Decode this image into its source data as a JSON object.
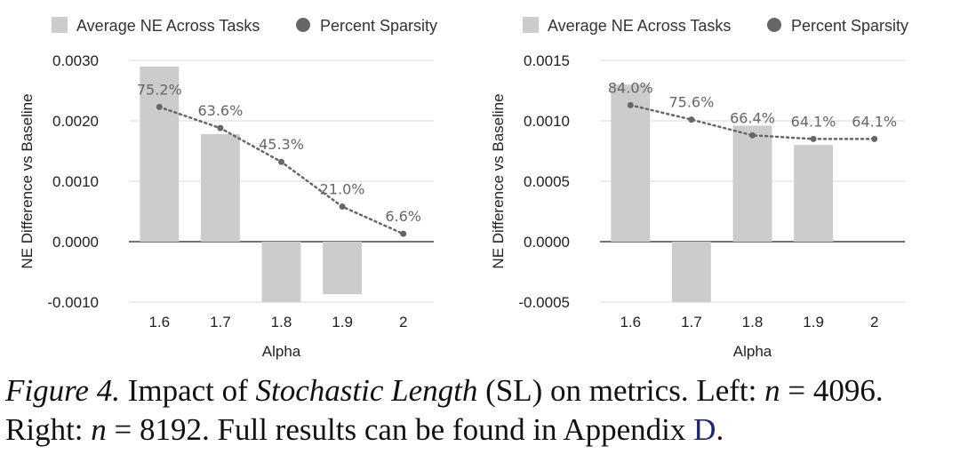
{
  "colors": {
    "bar": "#cccccc",
    "line": "#666666",
    "grid": "#d9d9d9",
    "zero": "#444444",
    "ref": "#1a237e"
  },
  "legend": {
    "bar_label": "Average NE Across Tasks",
    "line_label": "Percent Sparsity"
  },
  "caption": {
    "figure_label": "Figure 4.",
    "text_1": " Impact of ",
    "emph": "Stochastic Length",
    "text_2": " (SL) on metrics. Left: ",
    "var_1": "n",
    "eq_1": " = 4096. Right: ",
    "var_2": "n",
    "eq_2": " = 8192. Full results can be found in Appendix ",
    "appendix_ref": "D",
    "end": "."
  },
  "chart_data": [
    {
      "type": "bar",
      "xlabel": "Alpha",
      "ylabel": "NE Difference vs Baseline",
      "categories": [
        "1.6",
        "1.7",
        "1.8",
        "1.9",
        "2"
      ],
      "ylim": [
        -0.001,
        0.003
      ],
      "yticks": [
        "-0.0010",
        "0.0000",
        "0.0010",
        "0.0020",
        "0.0030"
      ],
      "bars": [
        0.0029,
        0.00178,
        -0.001,
        -0.00087,
        null
      ],
      "line_values": [
        0.00223,
        0.00188,
        0.00132,
        0.00058,
        0.00013
      ],
      "line_labels": [
        "75.2%",
        "63.6%",
        "45.3%",
        "21.0%",
        "6.6%"
      ],
      "grid": true,
      "legend_position": "top"
    },
    {
      "type": "bar",
      "xlabel": "Alpha",
      "ylabel": "NE Difference vs Baseline",
      "categories": [
        "1.6",
        "1.7",
        "1.8",
        "1.9",
        "2"
      ],
      "ylim": [
        -0.0005,
        0.0015
      ],
      "yticks": [
        "-0.0005",
        "0.0000",
        "0.0005",
        "0.0010",
        "0.0015"
      ],
      "bars": [
        0.0013,
        -0.0005,
        0.00096,
        0.0008,
        null
      ],
      "line_values": [
        0.00113,
        0.00101,
        0.00088,
        0.00085,
        0.00085
      ],
      "line_labels": [
        "84.0%",
        "75.6%",
        "66.4%",
        "64.1%",
        "64.1%"
      ],
      "grid": true,
      "legend_position": "top"
    }
  ]
}
